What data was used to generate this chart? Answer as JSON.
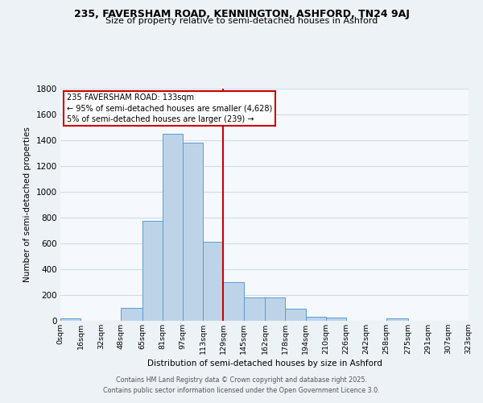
{
  "title1": "235, FAVERSHAM ROAD, KENNINGTON, ASHFORD, TN24 9AJ",
  "title2": "Size of property relative to semi-detached houses in Ashford",
  "xlabel": "Distribution of semi-detached houses by size in Ashford",
  "ylabel": "Number of semi-detached properties",
  "annotation_line1": "235 FAVERSHAM ROAD: 133sqm",
  "annotation_line2": "← 95% of semi-detached houses are smaller (4,628)",
  "annotation_line3": "5% of semi-detached houses are larger (239) →",
  "bin_edges": [
    0,
    16,
    32,
    48,
    65,
    81,
    97,
    113,
    129,
    145,
    162,
    178,
    194,
    210,
    226,
    242,
    258,
    275,
    291,
    307,
    323
  ],
  "bin_counts": [
    15,
    0,
    0,
    100,
    775,
    1450,
    1380,
    610,
    300,
    180,
    180,
    90,
    30,
    20,
    0,
    0,
    15,
    0,
    0,
    0
  ],
  "bar_color": "#bdd4e8",
  "bar_edge_color": "#5b9bd5",
  "vline_color": "#cc0000",
  "vline_x": 129,
  "annotation_box_edge_color": "#cc0000",
  "tick_labels": [
    "0sqm",
    "16sqm",
    "32sqm",
    "48sqm",
    "65sqm",
    "81sqm",
    "97sqm",
    "113sqm",
    "129sqm",
    "145sqm",
    "162sqm",
    "178sqm",
    "194sqm",
    "210sqm",
    "226sqm",
    "242sqm",
    "258sqm",
    "275sqm",
    "291sqm",
    "307sqm",
    "323sqm"
  ],
  "ylim": [
    0,
    1800
  ],
  "yticks": [
    0,
    200,
    400,
    600,
    800,
    1000,
    1200,
    1400,
    1600,
    1800
  ],
  "footer_line1": "Contains HM Land Registry data © Crown copyright and database right 2025.",
  "footer_line2": "Contains public sector information licensed under the Open Government Licence 3.0.",
  "bg_color": "#edf2f7",
  "plot_bg_color": "#f5f8fc",
  "grid_color": "#d0dce8"
}
